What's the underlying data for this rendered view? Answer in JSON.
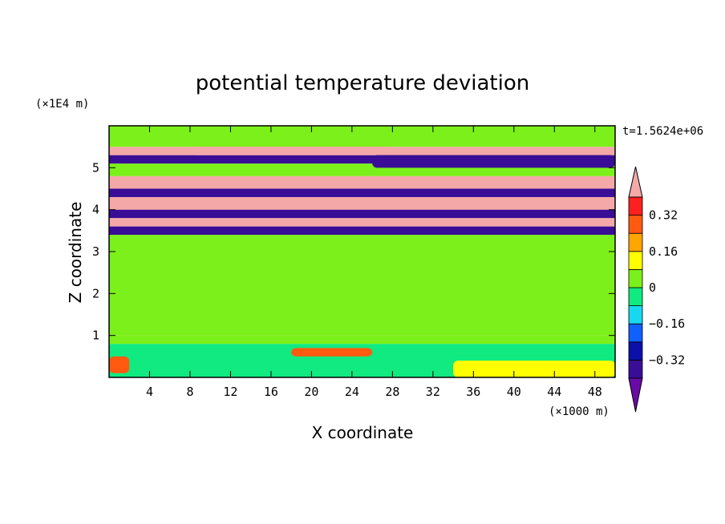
{
  "chart_data": {
    "type": "heatmap",
    "title": "potential temperature deviation",
    "xlabel": "X coordinate",
    "ylabel": "Z coordinate",
    "x_unit": "(×1000 m)",
    "y_unit": "(×1E4 m)",
    "time_label": "t=1.5624e+06",
    "xlim": [
      0,
      50
    ],
    "ylim": [
      0,
      6
    ],
    "x_ticks": [
      4,
      8,
      12,
      16,
      20,
      24,
      28,
      32,
      36,
      40,
      44,
      48
    ],
    "y_ticks": [
      1,
      2,
      3,
      4,
      5
    ],
    "colorbar": {
      "levels": [
        -0.4,
        -0.32,
        -0.24,
        -0.16,
        -0.08,
        0,
        0.08,
        0.16,
        0.24,
        0.32,
        0.4
      ],
      "labels": [
        "0.32",
        "0.16",
        "0",
        "−0.16",
        "−0.32"
      ],
      "label_values": [
        0.32,
        0.16,
        0,
        -0.16,
        -0.32
      ],
      "colors": [
        "#6a0aa6",
        "#3a0d96",
        "#0a10a8",
        "#1060ff",
        "#18d8f0",
        "#10ea80",
        "#7cf01a",
        "#ffff00",
        "#ffa500",
        "#ff5a10",
        "#ff2020",
        "#f4a8a8"
      ]
    },
    "bands": [
      {
        "y0": 0,
        "y1": 0.8,
        "level": 5
      },
      {
        "y0": 0.8,
        "y1": 1.0,
        "level": 6
      },
      {
        "y0": 1.0,
        "y1": 3.4,
        "level": 6
      },
      {
        "y0": 3.4,
        "y1": 3.6,
        "level": 1
      },
      {
        "y0": 3.6,
        "y1": 3.8,
        "level": 11
      },
      {
        "y0": 3.8,
        "y1": 4.0,
        "level": 1
      },
      {
        "y0": 4.0,
        "y1": 4.3,
        "level": 11
      },
      {
        "y0": 4.3,
        "y1": 4.5,
        "level": 1
      },
      {
        "y0": 4.5,
        "y1": 4.8,
        "level": 11
      },
      {
        "y0": 4.8,
        "y1": 5.1,
        "level": 6
      },
      {
        "y0": 5.1,
        "y1": 5.3,
        "level": 1
      },
      {
        "y0": 5.3,
        "y1": 5.5,
        "level": 11
      },
      {
        "y0": 5.5,
        "y1": 6.0,
        "level": 6
      }
    ],
    "patches": [
      {
        "x0": 0,
        "x1": 2,
        "y0": 0.1,
        "y1": 0.5,
        "level": 9
      },
      {
        "x0": 18,
        "x1": 26,
        "y0": 0.5,
        "y1": 0.7,
        "level": 9
      },
      {
        "x0": 34,
        "x1": 50,
        "y0": 0,
        "y1": 0.4,
        "level": 7
      },
      {
        "x0": 8,
        "x1": 28,
        "y0": 5.3,
        "y1": 5.5,
        "level": 11
      },
      {
        "x0": 26,
        "x1": 50,
        "y0": 5.0,
        "y1": 5.3,
        "level": 1
      }
    ]
  }
}
